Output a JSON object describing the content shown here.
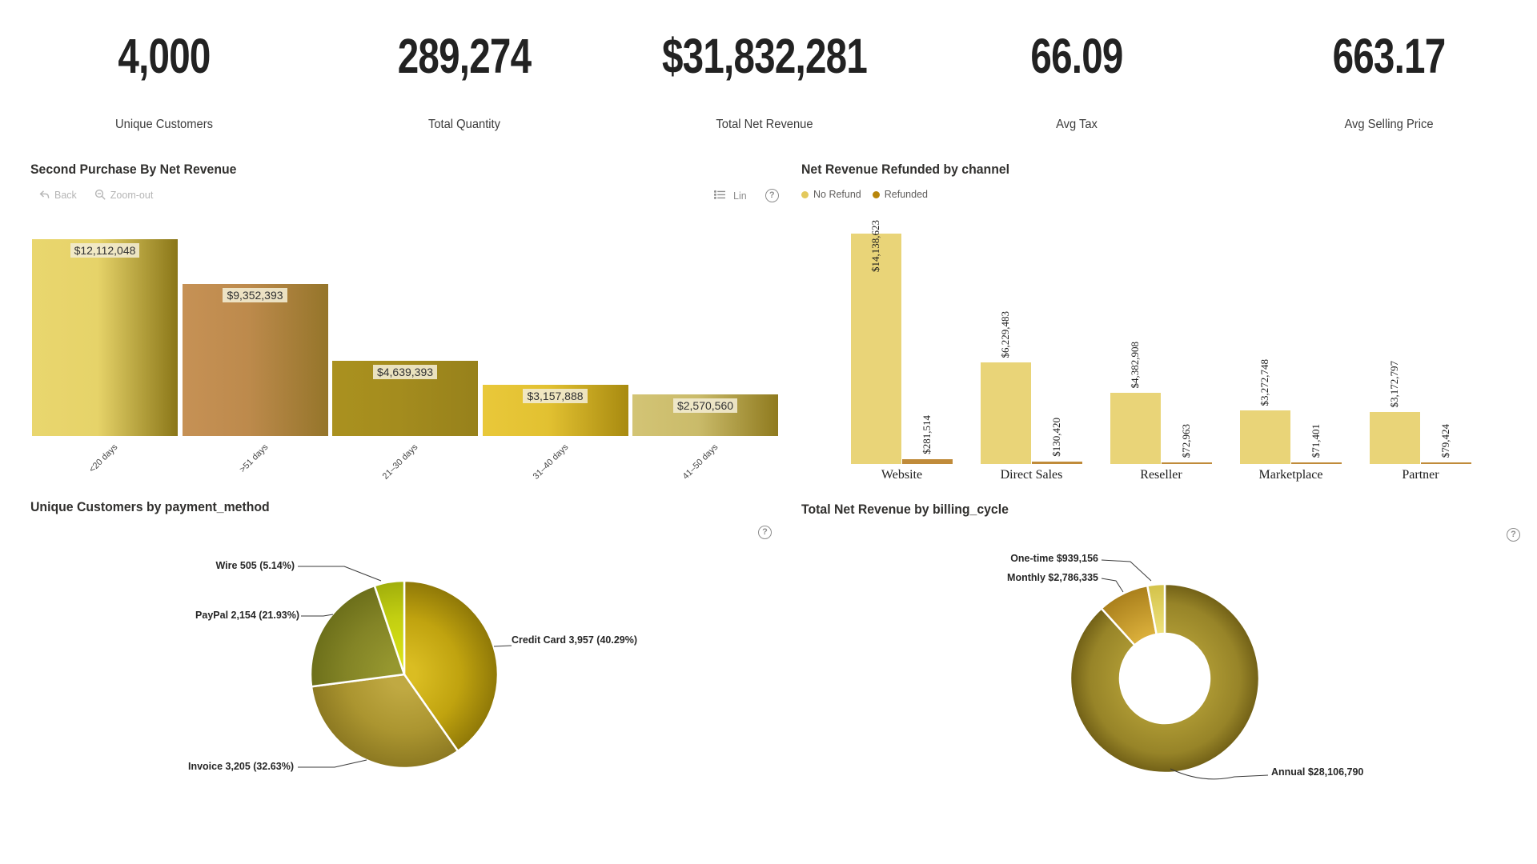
{
  "icons": {
    "help": "?"
  },
  "kpis": [
    {
      "value": "4,000",
      "label": "Unique Customers"
    },
    {
      "value": "289,274",
      "label": "Total Quantity"
    },
    {
      "value": "$31,832,281",
      "label": "Total Net Revenue"
    },
    {
      "value": "66.09",
      "label": "Avg Tax"
    },
    {
      "value": "663.17",
      "label": "Avg Selling Price"
    }
  ],
  "bar_panel": {
    "title": "Second Purchase By Net Revenue",
    "toolbar": {
      "back_label": "Back",
      "zoomout_label": "Zoom-out",
      "lin_label": "Lin"
    }
  },
  "refund_panel": {
    "title": "Net Revenue Refunded by channel",
    "legend": [
      {
        "label": "No Refund",
        "color": "#e3c95d"
      },
      {
        "label": "Refunded",
        "color": "#b8860b"
      }
    ]
  },
  "pie_panel": {
    "title": "Unique Customers by payment_method"
  },
  "donut_panel": {
    "title": "Total Net Revenue by billing_cycle"
  },
  "chart_data": [
    {
      "type": "bar",
      "title": "Second Purchase By Net Revenue",
      "categories": [
        "<20 days",
        ">51 days",
        "21–30 days",
        "31–40 days",
        "41–50 days"
      ],
      "values": [
        12112048,
        9352393,
        4639393,
        3157888,
        2570560
      ],
      "labels": [
        "$12,112,048",
        "$9,352,393",
        "$4,639,393",
        "$3,157,888",
        "$2,570,560"
      ],
      "bar_gradients": [
        [
          "#e9d66e",
          "#e6d369",
          "#8a7618"
        ],
        [
          "#c69155",
          "#bd8a4c",
          "#95752a"
        ],
        [
          "#aa911f",
          "#a48c1e",
          "#97811b"
        ],
        [
          "#e9c83a",
          "#e2c131",
          "#a88a10"
        ],
        [
          "#d3c475",
          "#cabb6a",
          "#8f7a1e"
        ]
      ],
      "ylim": [
        0,
        14000000
      ],
      "grid": false,
      "legend_position": "none"
    },
    {
      "type": "bar",
      "title": "Net Revenue Refunded by channel",
      "categories": [
        "Website",
        "Direct Sales",
        "Reseller",
        "Marketplace",
        "Partner"
      ],
      "series": [
        {
          "name": "No Refund",
          "color": "#e9d478",
          "values": [
            14138623,
            6229483,
            4382908,
            3272748,
            3172797
          ],
          "labels": [
            "$14,138,623",
            "$6,229,483",
            "$4,382,908",
            "$3,272,748",
            "$3,172,797"
          ]
        },
        {
          "name": "Refunded",
          "color": "#c08b3a",
          "values": [
            281514,
            130420,
            72963,
            71401,
            79424
          ],
          "labels": [
            "$281,514",
            "$130,420",
            "$72,963",
            "$71,401",
            "$79,424"
          ]
        }
      ],
      "ylim": [
        0,
        15000000
      ],
      "grid": false,
      "legend_position": "top-left"
    },
    {
      "type": "pie",
      "title": "Unique Customers by payment_method",
      "slices": [
        {
          "name": "Credit Card",
          "value": 3957,
          "pct": 40.29,
          "label": "Credit Card 3,957 (40.29%)"
        },
        {
          "name": "Invoice",
          "value": 3205,
          "pct": 32.63,
          "label": "Invoice 3,205 (32.63%)"
        },
        {
          "name": "PayPal",
          "value": 2154,
          "pct": 21.93,
          "label": "PayPal 2,154 (21.93%)"
        },
        {
          "name": "Wire",
          "value": 505,
          "pct": 5.14,
          "label": "Wire 505 (5.14%)"
        }
      ]
    },
    {
      "type": "donut",
      "title": "Total Net Revenue by billing_cycle",
      "slices": [
        {
          "name": "Annual",
          "value": 28106790,
          "label": "Annual $28,106,790"
        },
        {
          "name": "Monthly",
          "value": 2786335,
          "label": "Monthly $2,786,335"
        },
        {
          "name": "One-time",
          "value": 939156,
          "label": "One-time $939,156"
        }
      ]
    }
  ]
}
